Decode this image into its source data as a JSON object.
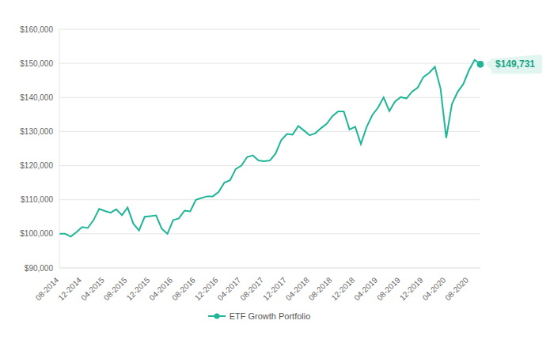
{
  "chart_data": {
    "type": "line",
    "categories": [
      "08-2014",
      null,
      null,
      null,
      "12-2014",
      null,
      null,
      null,
      "04-2015",
      null,
      null,
      null,
      "08-2015",
      null,
      null,
      null,
      "12-2015",
      null,
      null,
      null,
      "04-2016",
      null,
      null,
      null,
      "08-2016",
      null,
      null,
      null,
      "12-2016",
      null,
      null,
      null,
      "04-2017",
      null,
      null,
      null,
      "08-2017",
      null,
      null,
      null,
      "12-2017",
      null,
      null,
      null,
      "04-2018",
      null,
      null,
      null,
      "08-2018",
      null,
      null,
      null,
      "12-2018",
      null,
      null,
      null,
      "04-2019",
      null,
      null,
      null,
      "08-2019",
      null,
      null,
      null,
      "12-2019",
      null,
      null,
      null,
      "04-2020",
      null,
      null,
      null,
      "08-2020",
      null,
      null
    ],
    "series": [
      {
        "name": "ETF Growth Portfolio",
        "color": "#1fb597",
        "values": [
          100000,
          100000,
          99200,
          100500,
          102000,
          101700,
          104000,
          107300,
          106700,
          106200,
          107200,
          105500,
          107700,
          103000,
          101000,
          105000,
          105200,
          105400,
          101500,
          100000,
          104000,
          104500,
          106800,
          106600,
          110000,
          110500,
          111000,
          111000,
          112300,
          115000,
          115700,
          119000,
          120000,
          122500,
          123000,
          121500,
          121300,
          121500,
          123500,
          127500,
          129300,
          129100,
          131600,
          130300,
          128900,
          129500,
          131000,
          132300,
          134500,
          135900,
          135900,
          130600,
          131400,
          126300,
          131300,
          134800,
          137000,
          140000,
          136000,
          138800,
          140100,
          139700,
          141700,
          142900,
          146000,
          147200,
          149000,
          142600,
          128100,
          138000,
          141600,
          143900,
          148000,
          151000,
          149731
        ],
        "value_labels": [
          null,
          null,
          null,
          null,
          null,
          null,
          null,
          null,
          null,
          null,
          null,
          null,
          null,
          null,
          null,
          null,
          null,
          null,
          null,
          null,
          null,
          null,
          null,
          null,
          null,
          null,
          null,
          null,
          null,
          null,
          null,
          null,
          null,
          null,
          null,
          null,
          null,
          null,
          null,
          null,
          null,
          null,
          null,
          null,
          null,
          null,
          null,
          null,
          null,
          null,
          null,
          null,
          null,
          null,
          null,
          null,
          null,
          null,
          null,
          null,
          null,
          null,
          null,
          null,
          null,
          null,
          null,
          null,
          null,
          null,
          null,
          null,
          null,
          null,
          "$149,731"
        ]
      }
    ],
    "ylim": [
      90000,
      160000
    ],
    "yticks": [
      {
        "value": 90000,
        "label": "$90,000"
      },
      {
        "value": 100000,
        "label": "$100,000"
      },
      {
        "value": 110000,
        "label": "$110,000"
      },
      {
        "value": 120000,
        "label": "$120,000"
      },
      {
        "value": 130000,
        "label": "$130,000"
      },
      {
        "value": 140000,
        "label": "$140,000"
      },
      {
        "value": 150000,
        "label": "$150,000"
      },
      {
        "value": 160000,
        "label": "$160,000"
      }
    ],
    "grid": true,
    "legend": "bottom"
  }
}
